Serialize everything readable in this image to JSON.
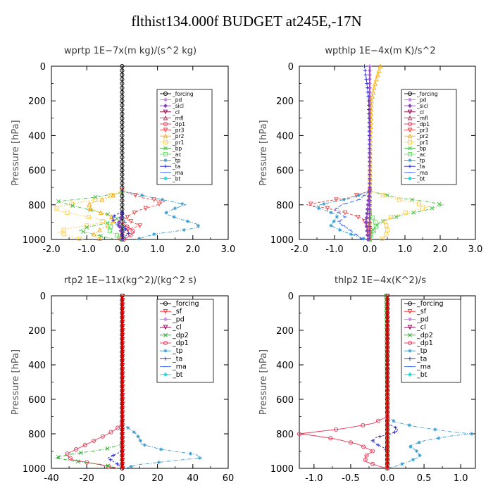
{
  "figure_title": "flthist134.000f  BUDGET at245E,-17N",
  "colors": {
    "forcing": "#000000",
    "pd": "#cc88ee",
    "sicl": "#8844bb",
    "cl": "#880044",
    "mfl": "#cc2255",
    "dp1": "#ee3355",
    "pr3": "#ee4444",
    "pr2": "#ffaa00",
    "pr1": "#ffcc44",
    "bp": "#44bb44",
    "ac": "#66dd66",
    "tp": "#3399cc",
    "ta": "#2222cc",
    "ma": "#3366ff",
    "bt": "#22dddd",
    "sf": "#ff2222",
    "dp2": "#22aa22",
    "zero_line": "#cc0000"
  },
  "chart_data": [
    {
      "type": "line",
      "title": "wprtp   1E−7x(m kg)/(s^2 kg)",
      "ylabel": "Pressure  [hPa]",
      "xlim": [
        -2.0,
        3.0
      ],
      "ylim": [
        1000,
        0
      ],
      "xticks": [
        -2.0,
        -1.0,
        0.0,
        1.0,
        2.0,
        3.0
      ],
      "xtick_labels": [
        "-2.0",
        "-1.0",
        "0.0",
        "1.0",
        "2.0",
        "3.0"
      ],
      "yticks": [
        0,
        200,
        400,
        600,
        800,
        1000
      ],
      "ytick_labels": [
        "0",
        "200",
        "400",
        "600",
        "800",
        "1000"
      ],
      "legend": [
        "_forcing",
        "_pd",
        "_sicl",
        "_cl",
        "_mfl",
        "_dp1",
        "_pr3",
        "_pr2",
        "_pr1",
        "_bp",
        "_ac",
        "_tp",
        "_ta",
        "_ma",
        "_bt"
      ],
      "legend_keys": [
        "forcing",
        "pd",
        "sicl",
        "cl",
        "mfl",
        "dp1",
        "pr3",
        "pr2",
        "pr1",
        "bp",
        "ac",
        "tp",
        "ta",
        "ma",
        "bt"
      ],
      "series": [
        {
          "key": "forcing",
          "p": [
            0,
            400,
            700,
            800,
            1000
          ],
          "x": [
            0,
            0,
            0,
            0,
            0
          ]
        },
        {
          "key": "pr1",
          "p": [
            720,
            760,
            790,
            810,
            830,
            860,
            880,
            900,
            920,
            940,
            960,
            980,
            1000
          ],
          "x": [
            0,
            -0.5,
            -1.3,
            -1.8,
            -1.9,
            -1.2,
            -0.7,
            -0.5,
            -1.0,
            -1.6,
            -1.8,
            -1.5,
            -1.1
          ]
        },
        {
          "key": "bp",
          "p": [
            730,
            760,
            780,
            800,
            830,
            860,
            880,
            900,
            930,
            950,
            980,
            1000
          ],
          "x": [
            0,
            -0.9,
            -1.8,
            -1.5,
            -0.9,
            -0.3,
            -0.15,
            -0.3,
            -1.0,
            -1.2,
            -0.6,
            -0.2
          ]
        },
        {
          "key": "pr2",
          "p": [
            720,
            760,
            790,
            810,
            830,
            860,
            880,
            910,
            940,
            970,
            1000
          ],
          "x": [
            0,
            -0.4,
            -0.9,
            -1.0,
            -0.8,
            -0.4,
            -0.2,
            -0.3,
            -0.6,
            -0.8,
            -0.6
          ]
        },
        {
          "key": "pr3",
          "p": [
            720,
            760,
            780,
            800,
            830,
            860,
            880,
            900,
            920,
            940,
            970,
            1000
          ],
          "x": [
            0,
            0.6,
            1.2,
            1.0,
            0.5,
            0.2,
            0.1,
            0.3,
            0.5,
            0.2,
            0.0,
            -0.1
          ]
        },
        {
          "key": "tp",
          "p": [
            720,
            760,
            790,
            800,
            820,
            850,
            880,
            910,
            930,
            950,
            970,
            1000
          ],
          "x": [
            0,
            0.9,
            1.6,
            1.8,
            1.5,
            1.2,
            1.6,
            2.1,
            2.2,
            1.6,
            0.9,
            0.4
          ]
        },
        {
          "key": "ac",
          "p": [
            900,
            920,
            940,
            960,
            980,
            1000
          ],
          "x": [
            0,
            -0.3,
            -0.4,
            -0.3,
            -0.1,
            0
          ]
        },
        {
          "key": "ta",
          "p": [
            840,
            860,
            880,
            900,
            920,
            940,
            960,
            980,
            1000
          ],
          "x": [
            0,
            -0.2,
            -0.3,
            -0.2,
            -0.1,
            0.1,
            0.2,
            0.1,
            0
          ]
        },
        {
          "key": "dp1",
          "p": [
            900,
            920,
            940,
            960,
            980,
            1000
          ],
          "x": [
            0,
            0.1,
            0.25,
            0.35,
            0.2,
            0.05
          ]
        },
        {
          "key": "sicl",
          "p": [
            850,
            880,
            910,
            940,
            970,
            1000
          ],
          "x": [
            0,
            -0.05,
            -0.1,
            -0.05,
            0,
            0
          ]
        },
        {
          "key": "ma",
          "p": [
            850,
            880,
            910,
            940,
            970,
            1000
          ],
          "x": [
            0,
            0.05,
            0.1,
            0.05,
            0,
            0
          ]
        }
      ]
    },
    {
      "type": "line",
      "title": "wpthlp   1E−4x(m K)/s^2",
      "ylabel": "Pressure  [hPa]",
      "xlim": [
        -2.0,
        3.0
      ],
      "ylim": [
        1000,
        0
      ],
      "xticks": [
        -2.0,
        -1.0,
        0.0,
        1.0,
        2.0,
        3.0
      ],
      "xtick_labels": [
        "-2.0",
        "-1.0",
        "0.0",
        "1.0",
        "2.0",
        "3.0"
      ],
      "yticks": [
        0,
        200,
        400,
        600,
        800,
        1000
      ],
      "ytick_labels": [
        "0",
        "200",
        "400",
        "600",
        "800",
        "1000"
      ],
      "legend": [
        "_forcing",
        "_pd",
        "_sicl",
        "_cl",
        "_mfl",
        "_dp1",
        "_pr3",
        "_pr2",
        "_pr1",
        "_bp",
        "_ac",
        "_tp",
        "_ta",
        "_ma",
        "_bt"
      ],
      "legend_keys": [
        "forcing",
        "pd",
        "sicl",
        "cl",
        "mfl",
        "dp1",
        "pr3",
        "pr2",
        "pr1",
        "bp",
        "ac",
        "tp",
        "ta",
        "ma",
        "bt"
      ],
      "series": [
        {
          "key": "pd",
          "p": [
            0,
            200,
            400,
            600,
            800,
            1000
          ],
          "x": [
            0,
            0,
            0,
            0,
            0,
            0
          ]
        },
        {
          "key": "pr2",
          "p": [
            0,
            100,
            200,
            400,
            600,
            800,
            1000
          ],
          "x": [
            0.3,
            0.15,
            0.05,
            0.02,
            0.01,
            0.0,
            0.0
          ]
        },
        {
          "key": "ta",
          "p": [
            0,
            100,
            200,
            400,
            600,
            800,
            1000
          ],
          "x": [
            -0.15,
            -0.08,
            -0.03,
            -0.01,
            0,
            0,
            0
          ]
        },
        {
          "key": "bp",
          "p": [
            720,
            760,
            780,
            800,
            830,
            860,
            900,
            940,
            980,
            1000
          ],
          "x": [
            0,
            0.8,
            1.6,
            2.1,
            1.6,
            0.9,
            0.3,
            0.1,
            0,
            0
          ]
        },
        {
          "key": "pr1",
          "p": [
            720,
            760,
            790,
            810,
            840,
            870,
            900,
            930,
            960,
            990,
            1000
          ],
          "x": [
            0,
            0.6,
            1.3,
            1.7,
            1.1,
            0.6,
            0.4,
            0.5,
            0.5,
            0.4,
            0.3
          ]
        },
        {
          "key": "pr3",
          "p": [
            720,
            760,
            780,
            800,
            820,
            850,
            880,
            910,
            950,
            1000
          ],
          "x": [
            0,
            -0.6,
            -1.3,
            -1.8,
            -1.2,
            -0.6,
            -0.2,
            -0.1,
            0,
            0
          ]
        },
        {
          "key": "tp",
          "p": [
            720,
            760,
            790,
            810,
            830,
            860,
            890,
            920,
            950,
            980,
            1000
          ],
          "x": [
            0,
            -0.5,
            -1.2,
            -1.6,
            -1.3,
            -0.9,
            -1.0,
            -1.1,
            -0.8,
            -0.4,
            -0.1
          ]
        },
        {
          "key": "ma",
          "p": [
            720,
            770,
            800,
            830,
            870,
            900,
            940,
            1000
          ],
          "x": [
            0,
            -0.3,
            -0.8,
            -1.0,
            -0.7,
            -0.9,
            -0.6,
            -0.2
          ]
        },
        {
          "key": "ac",
          "p": [
            850,
            880,
            910,
            940,
            970,
            1000
          ],
          "x": [
            0,
            0.1,
            0.2,
            0.15,
            0.05,
            0
          ]
        },
        {
          "key": "sicl",
          "p": [
            700,
            800,
            900,
            1000
          ],
          "x": [
            0,
            -0.05,
            -0.1,
            -0.05
          ]
        }
      ]
    },
    {
      "type": "line",
      "title": "rtp2   1E−11x(kg^2)/(kg^2 s)",
      "ylabel": "Pressure  [hPa]",
      "xlim": [
        -40,
        60
      ],
      "ylim": [
        1000,
        0
      ],
      "xticks": [
        -40,
        -20,
        0,
        20,
        40,
        60
      ],
      "xtick_labels": [
        "-40",
        "-20",
        "0",
        "20",
        "40",
        "60"
      ],
      "yticks": [
        0,
        200,
        400,
        600,
        800,
        1000
      ],
      "ytick_labels": [
        "0",
        "200",
        "400",
        "600",
        "800",
        "1000"
      ],
      "legend": [
        "_forcing",
        "_sf",
        "_pd",
        "_cl",
        "_dp2",
        "_dp1",
        "_tp",
        "_ta",
        "_ma",
        "_bt"
      ],
      "legend_keys": [
        "forcing",
        "sf",
        "pd",
        "cl",
        "dp2",
        "dp1",
        "tp",
        "ta",
        "ma",
        "bt"
      ],
      "series": [
        {
          "key": "forcing",
          "p": [
            0,
            200,
            400,
            600,
            800,
            1000
          ],
          "x": [
            0,
            0,
            0,
            0,
            0,
            0
          ]
        },
        {
          "key": "sf",
          "p": [
            0,
            200,
            400,
            600,
            800,
            1000
          ],
          "x": [
            0.3,
            0.3,
            0.3,
            0.3,
            0.3,
            0.3
          ]
        },
        {
          "key": "dp1",
          "p": [
            740,
            770,
            800,
            830,
            860,
            890,
            920,
            950,
            980,
            1000
          ],
          "x": [
            0,
            -3,
            -8,
            -14,
            -20,
            -26,
            -32,
            -28,
            -12,
            -3
          ]
        },
        {
          "key": "dp2",
          "p": [
            860,
            890,
            920,
            940,
            960,
            980,
            1000
          ],
          "x": [
            0,
            -10,
            -30,
            -38,
            -25,
            -10,
            -2
          ]
        },
        {
          "key": "tp",
          "p": [
            740,
            770,
            800,
            830,
            860,
            890,
            920,
            940,
            960,
            980,
            1000
          ],
          "x": [
            0,
            4,
            8,
            10,
            11,
            22,
            42,
            44,
            25,
            8,
            2
          ]
        },
        {
          "key": "ta",
          "p": [
            900,
            920,
            940,
            960,
            980,
            1000
          ],
          "x": [
            0,
            -4,
            -8,
            -5,
            -2,
            0
          ]
        }
      ]
    },
    {
      "type": "line",
      "title": "thlp2   1E−4x(K^2)/s",
      "ylabel": "Pressure  [hPa]",
      "xlim": [
        -1.2,
        1.2
      ],
      "ylim": [
        1000,
        0
      ],
      "xticks": [
        -1.0,
        -0.5,
        0.0,
        0.5,
        1.0
      ],
      "xtick_labels": [
        "-1.0",
        "-0.5",
        "0.0",
        "0.5",
        "1.0"
      ],
      "yticks": [
        0,
        200,
        400,
        600,
        800,
        1000
      ],
      "ytick_labels": [
        "0",
        "200",
        "400",
        "600",
        "800",
        "1000"
      ],
      "legend": [
        "_forcing",
        "_sf",
        "_pd",
        "_cl",
        "_dp2",
        "_dp1",
        "_tp",
        "_ta",
        "_ma",
        "_bt"
      ],
      "legend_keys": [
        "forcing",
        "sf",
        "pd",
        "cl",
        "dp2",
        "dp1",
        "tp",
        "ta",
        "ma",
        "bt"
      ],
      "series": [
        {
          "key": "forcing",
          "p": [
            0,
            200,
            400,
            600,
            800,
            1000
          ],
          "x": [
            0,
            0,
            0,
            0,
            0,
            0
          ]
        },
        {
          "key": "dp2",
          "p": [
            0,
            200,
            400,
            600,
            700,
            1000
          ],
          "x": [
            -0.02,
            -0.01,
            -0.01,
            0,
            0,
            0
          ]
        },
        {
          "key": "dp1",
          "p": [
            700,
            740,
            770,
            790,
            800,
            810,
            830,
            860,
            900,
            930,
            960,
            990,
            1000
          ],
          "x": [
            0,
            -0.2,
            -0.6,
            -1.0,
            -1.2,
            -1.0,
            -0.7,
            -0.4,
            -0.2,
            -0.3,
            -0.3,
            -0.1,
            0
          ]
        },
        {
          "key": "tp",
          "p": [
            700,
            730,
            760,
            790,
            800,
            810,
            840,
            870,
            900,
            930,
            960,
            990,
            1000
          ],
          "x": [
            0,
            0.1,
            0.4,
            0.9,
            1.15,
            0.9,
            0.5,
            0.3,
            0.4,
            0.45,
            0.3,
            0.1,
            0
          ]
        },
        {
          "key": "ta",
          "p": [
            740,
            760,
            780,
            800,
            820,
            840,
            860,
            880,
            900
          ],
          "x": [
            0,
            0.1,
            0.15,
            0.05,
            -0.15,
            -0.2,
            -0.15,
            -0.05,
            0
          ]
        },
        {
          "key": "sf",
          "p": [
            0,
            500,
            800,
            1000
          ],
          "x": [
            0,
            0,
            0,
            0
          ]
        }
      ]
    }
  ]
}
